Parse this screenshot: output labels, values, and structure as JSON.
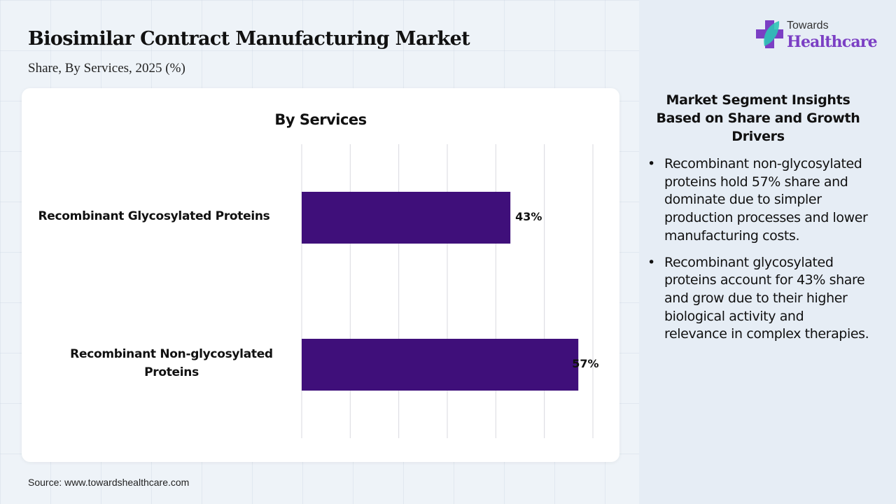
{
  "header": {
    "title": "Biosimilar Contract Manufacturing Market",
    "subtitle": "Share, By Services, 2025 (%)"
  },
  "logo": {
    "top_text": "Towards",
    "main_text": "Healthcare",
    "icon": "medical-cross-leaf-icon",
    "brand_color": "#7b3fc4",
    "leaf_color": "#2ec4b6"
  },
  "chart_data": {
    "type": "bar",
    "orientation": "horizontal",
    "title": "By Services",
    "categories": [
      "Recombinant Glycosylated Proteins",
      "Recombinant Non-glycosylated Proteins"
    ],
    "values": [
      43,
      57
    ],
    "value_labels": [
      "43%",
      "57%"
    ],
    "xlabel": "",
    "ylabel": "",
    "xlim": [
      0,
      60
    ],
    "grid_step": 10,
    "grid": true,
    "bar_color": "#3f0f7a",
    "legend": "none"
  },
  "insights": {
    "title": "Market Segment Insights Based on Share and Growth Drivers",
    "bullet": "•",
    "items": [
      "Recombinant non-glycosylated proteins hold 57% share and dominate due to simpler production processes and lower manufacturing costs.",
      "Recombinant glycosylated proteins account for 43% share and grow due to their higher biological activity and relevance in complex therapies."
    ]
  },
  "footer": {
    "source": "Source: www.towardshealthcare.com"
  }
}
